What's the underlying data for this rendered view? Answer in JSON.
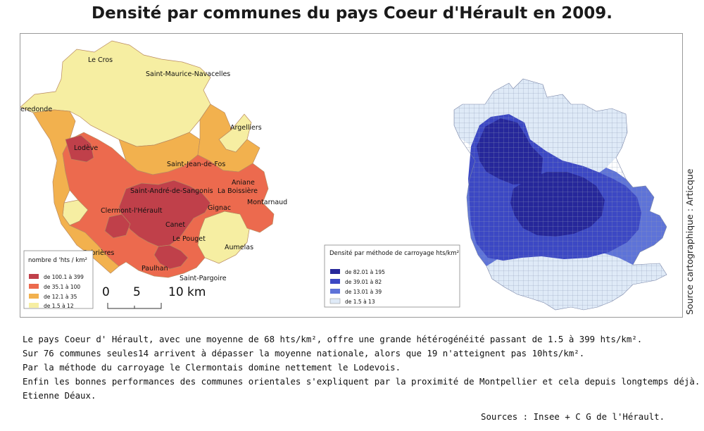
{
  "title": "Densité par communes du pays Coeur d'Hérault en 2009.",
  "colors": {
    "c1": "#c0404a",
    "c2": "#ec6a4e",
    "c3": "#f2b14e",
    "c4": "#f6eea2",
    "g1": "#26279a",
    "g2": "#3c48c4",
    "g3": "#5e73d8",
    "g4": "#dfeaf7",
    "grid_line": "#8e9ab8",
    "frame": "#9a9a9a"
  },
  "commune_labels": [
    "Le Cros",
    "Saint-Maurice-Navacelles",
    "Roqueredonde",
    "Argelliers",
    "Lodève",
    "Saint-Jean-de-Fos",
    "Aniane",
    "La Boissière",
    "Saint-André-de-Sangonis",
    "Montarnaud",
    "Gignac",
    "Clermont-l'Hérault",
    "Canet",
    "Le Pouget",
    "Aumelas",
    "Cabrières",
    "Paulhan",
    "Saint-Pargoire"
  ],
  "legend_communes": {
    "title": "nombre d 'hts / km²",
    "items": [
      {
        "label": "de 100.1 à 399",
        "color": "#c0404a"
      },
      {
        "label": "de 35.1 à 100",
        "color": "#ec6a4e"
      },
      {
        "label": "de 12.1 à 35",
        "color": "#f2b14e"
      },
      {
        "label": "de 1.5 à 12",
        "color": "#f6eea2"
      }
    ]
  },
  "legend_grid": {
    "title": "Densité par méthode de carroyage hts/km²",
    "items": [
      {
        "label": "de 82.01 à 195",
        "color": "#26279a"
      },
      {
        "label": "de 39.01 à 82",
        "color": "#3c48c4"
      },
      {
        "label": "de 13.01 à 39",
        "color": "#5e73d8"
      },
      {
        "label": "de 1.5 à 13",
        "color": "#dfeaf7"
      }
    ]
  },
  "scale_bar": {
    "labels": [
      "0",
      "5",
      "10 km"
    ]
  },
  "source_side": "Source cartographique : Articque",
  "paragraphs": [
    "Le pays Coeur d' Hérault, avec une moyenne de 68 hts/km², offre une grande hétérogénéité passant de 1.5 à 399 hts/km².",
    "Sur 76 communes seules14 arrivent à dépasser la moyenne nationale, alors que 19 n'atteignent pas 10hts/km².",
    "Par la méthode du carroyage le Clermontais domine nettement le Lodevois.",
    "Enfin les bonnes performances des communes orientales s'expliquent par la proximité de Montpellier et cela depuis longtemps déjà.",
    "Etienne Déaux."
  ],
  "footer": "Sources : Insee + C G de l'Hérault."
}
